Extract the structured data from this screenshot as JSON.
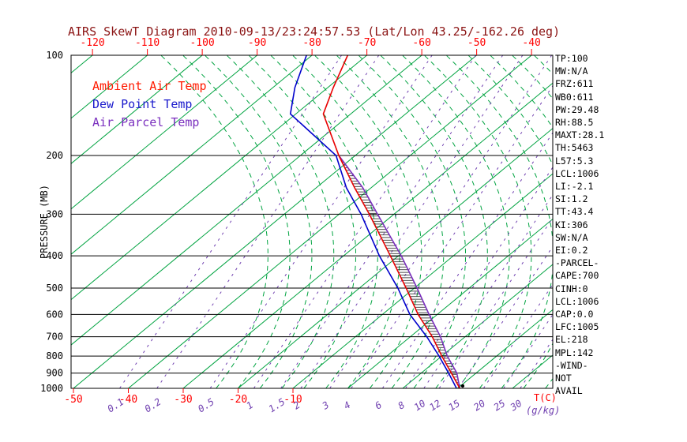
{
  "title": "AIRS SkewT Diagram 2010-09-13/23:24:57.53 (Lat/Lon 43.25/-162.26 deg)",
  "colors": {
    "green": "#00a340",
    "purple": "#7040b0",
    "axis_red": "#ff0000",
    "title_red": "#8b1414",
    "black": "#000000"
  },
  "legend": {
    "items": [
      {
        "label": "Ambient Air Temp",
        "color": "#ff1a00"
      },
      {
        "label": "Dew Point Temp",
        "color": "#1a1acc"
      },
      {
        "label": "Air Parcel Temp",
        "color": "#7a2fbe"
      }
    ]
  },
  "axes": {
    "pressure_title": "PRESSURE (MB)",
    "pressure_ticks": [
      100,
      200,
      300,
      400,
      500,
      600,
      700,
      800,
      900,
      1000
    ],
    "top_temp_ticks": [
      -120,
      -110,
      -100,
      -90,
      -80,
      -70,
      -60,
      -50,
      -40
    ],
    "bottom_temp_ticks": [
      -50,
      -40,
      -30,
      -20,
      -10
    ],
    "temp_unit": "T(C)",
    "mixing_unit": "(g/kg)",
    "mixing_ratio_ticks": [
      0.1,
      0.2,
      0.5,
      1,
      1.5,
      2,
      3,
      4,
      6,
      8,
      10,
      12,
      15,
      20,
      25,
      30
    ]
  },
  "stats": [
    "TP:100",
    "MW:N/A",
    "FRZ:611",
    "WB0:611",
    "PW:29.48",
    "RH:88.5",
    "MAXT:28.1",
    "TH:5463",
    "L57:5.3",
    "LCL:1006",
    "LI:-2.1",
    "SI:1.2",
    "TT:43.4",
    "KI:306",
    "SW:N/A",
    "EI:0.2",
    "-PARCEL-",
    "CAPE:700",
    "CINH:0",
    "LCL:1006",
    "CAP:0.0",
    "LFC:1005",
    "EL:218",
    "MPL:142",
    "-WIND-",
    "NOT",
    "AVAIL"
  ],
  "chart_data": {
    "type": "line",
    "title": "AIRS SkewT Diagram 2010-09-13/23:24:57.53 (Lat/Lon 43.25/-162.26 deg)",
    "xlabel": "T(C)",
    "ylabel": "PRESSURE (MB)",
    "y_scale": "log-inverted",
    "x_range_top_mb": [
      -120,
      -40
    ],
    "x_range_bottom_mb": [
      -50,
      40
    ],
    "y_range_mb": [
      100,
      1000
    ],
    "series": [
      {
        "name": "Ambient Air Temp",
        "color": "#e80000",
        "points": [
          [
            1000,
            20.4
          ],
          [
            900,
            15.5
          ],
          [
            800,
            10
          ],
          [
            700,
            4
          ],
          [
            600,
            -3.5
          ],
          [
            500,
            -11.5
          ],
          [
            400,
            -21.5
          ],
          [
            300,
            -34.5
          ],
          [
            250,
            -43
          ],
          [
            200,
            -53
          ],
          [
            150,
            -65
          ],
          [
            125,
            -69
          ],
          [
            100,
            -73.5
          ]
        ]
      },
      {
        "name": "Dew Point Temp",
        "color": "#0000cc",
        "points": [
          [
            1000,
            19.8
          ],
          [
            900,
            15
          ],
          [
            800,
            9.5
          ],
          [
            700,
            3
          ],
          [
            600,
            -5
          ],
          [
            500,
            -13
          ],
          [
            400,
            -23.5
          ],
          [
            300,
            -36
          ],
          [
            250,
            -44.5
          ],
          [
            200,
            -53.5
          ],
          [
            150,
            -71
          ],
          [
            125,
            -76
          ],
          [
            100,
            -81
          ]
        ]
      },
      {
        "name": "Air Parcel Temp",
        "color": "#7a2fbe",
        "points": [
          [
            1000,
            20.4
          ],
          [
            900,
            16.5
          ],
          [
            800,
            11
          ],
          [
            700,
            5.5
          ],
          [
            600,
            -1.5
          ],
          [
            500,
            -9.5
          ],
          [
            400,
            -19.5
          ],
          [
            300,
            -33
          ],
          [
            250,
            -41.5
          ],
          [
            200,
            -53
          ]
        ]
      }
    ],
    "cape_hatched_between": [
      "Air Parcel Temp",
      "Ambient Air Temp"
    ],
    "grid": {
      "isotherms_c_step": 10,
      "mixing_ratio_lines_g_kg": [
        0.1,
        0.2,
        0.5,
        1,
        1.5,
        2,
        3,
        4,
        6,
        8,
        10,
        12,
        15,
        20,
        25,
        30
      ]
    }
  }
}
